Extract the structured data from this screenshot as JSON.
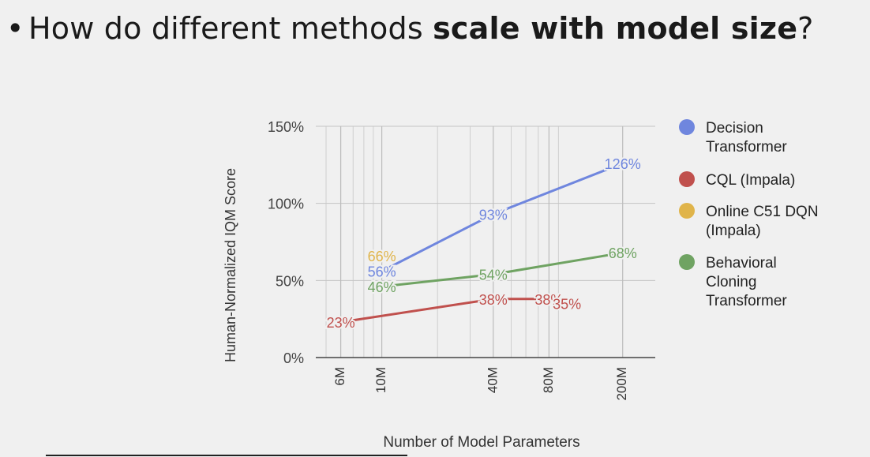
{
  "slide": {
    "bullet": "•",
    "question_prefix": "How do different methods ",
    "question_bold": "scale with model size",
    "question_suffix": "?"
  },
  "chart_data": {
    "type": "line",
    "title": "",
    "xlabel": "Number of Model Parameters",
    "ylabel": "Human-Normalized IQM Score",
    "ylim": [
      0,
      150
    ],
    "y_ticks": [
      "0%",
      "50%",
      "100%",
      "150%"
    ],
    "x_scale": "log",
    "x_ticks": [
      "6M",
      "10M",
      "40M",
      "80M",
      "200M"
    ],
    "grid": true,
    "legend_position": "right",
    "series": [
      {
        "name": "Decision Transformer",
        "color": "#6f86de",
        "points": [
          {
            "x": "10M",
            "y": 56,
            "label": "56%"
          },
          {
            "x": "40M",
            "y": 93,
            "label": "93%"
          },
          {
            "x": "200M",
            "y": 126,
            "label": "126%"
          }
        ]
      },
      {
        "name": "CQL (Impala)",
        "color": "#c0504d",
        "points": [
          {
            "x": "6M",
            "y": 23,
            "label": "23%"
          },
          {
            "x": "40M",
            "y": 38,
            "label": "38%"
          },
          {
            "x": "80M",
            "y": 38,
            "label": "38%"
          },
          {
            "x": "100M",
            "y": 35,
            "label": "35%"
          }
        ]
      },
      {
        "name": "Online C51 DQN (Impala)",
        "color": "#e0b44a",
        "points": [
          {
            "x": "10M",
            "y": 66,
            "label": "66%"
          }
        ]
      },
      {
        "name": "Behavioral Cloning Transformer",
        "color": "#6fa362",
        "points": [
          {
            "x": "10M",
            "y": 46,
            "label": "46%"
          },
          {
            "x": "40M",
            "y": 54,
            "label": "54%"
          },
          {
            "x": "200M",
            "y": 68,
            "label": "68%"
          }
        ]
      }
    ],
    "legend_entries": [
      {
        "label_lines": [
          "Decision",
          "Transformer"
        ],
        "color": "#6f86de"
      },
      {
        "label_lines": [
          "CQL (Impala)"
        ],
        "color": "#c0504d"
      },
      {
        "label_lines": [
          "Online C51 DQN",
          "(Impala)"
        ],
        "color": "#e0b44a"
      },
      {
        "label_lines": [
          "Behavioral",
          "Cloning",
          "Transformer"
        ],
        "color": "#6fa362"
      }
    ]
  }
}
